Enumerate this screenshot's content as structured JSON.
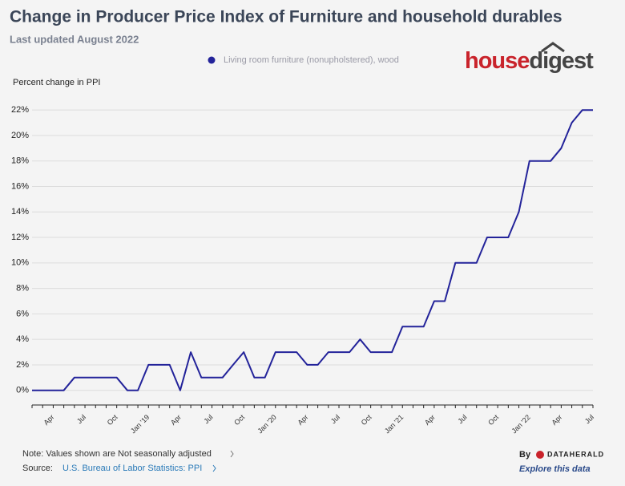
{
  "chart_data": {
    "type": "line",
    "title": "Change in Producer Price Index of Furniture and household durables",
    "subtitle": "Last updated August 2022",
    "y_label": "Percent change in PPI",
    "brand": [
      "house",
      "digest"
    ],
    "note": "Note: Values shown are Not seasonally adjusted",
    "source_label": "Source:",
    "source_link": "U.S. Bureau of Labor Statistics: PPI",
    "credit_by": "By",
    "credit_name": "DATAHERALD",
    "cta": "Explore this data",
    "categories": [
      null,
      null,
      "Apr",
      null,
      null,
      "Jul",
      null,
      null,
      "Oct",
      null,
      null,
      "Jan '19",
      null,
      null,
      "Apr",
      null,
      null,
      "Jul",
      null,
      null,
      "Oct",
      null,
      null,
      "Jan '20",
      null,
      null,
      "Apr",
      null,
      null,
      "Jul",
      null,
      null,
      "Oct",
      null,
      null,
      "Jan '21",
      null,
      null,
      "Apr",
      null,
      null,
      "Jul",
      null,
      null,
      "Oct",
      null,
      null,
      "Jan '22",
      null,
      null,
      "Apr",
      null,
      null,
      "Jul"
    ],
    "series": [
      {
        "name": "Living room furniture (nonupholstered), wood",
        "color": "#23239a",
        "values": [
          0,
          0,
          0,
          0,
          1,
          1,
          1,
          1,
          1,
          0,
          0,
          2,
          2,
          2,
          0,
          3,
          1,
          1,
          1,
          2,
          3,
          1,
          1,
          3,
          3,
          3,
          2,
          2,
          3,
          3,
          3,
          4,
          3,
          3,
          3,
          5,
          5,
          5,
          7,
          7,
          10,
          10,
          10,
          12,
          12,
          12,
          14,
          18,
          18,
          18,
          19,
          21,
          22,
          22
        ]
      }
    ],
    "ylim": [
      -1.15,
      22.45
    ],
    "yticks": [
      {
        "value": 0,
        "label": "0%"
      },
      {
        "value": 2,
        "label": "2%"
      },
      {
        "value": 4,
        "label": "4%"
      },
      {
        "value": 6,
        "label": "6%"
      },
      {
        "value": 8,
        "label": "8%"
      },
      {
        "value": 10,
        "label": "10%"
      },
      {
        "value": 12,
        "label": "12%"
      },
      {
        "value": 14,
        "label": "14%"
      },
      {
        "value": 16,
        "label": "16%"
      },
      {
        "value": 18,
        "label": "18%"
      },
      {
        "value": 20,
        "label": "20%"
      },
      {
        "value": 22,
        "label": "22%"
      }
    ],
    "grid": true
  }
}
